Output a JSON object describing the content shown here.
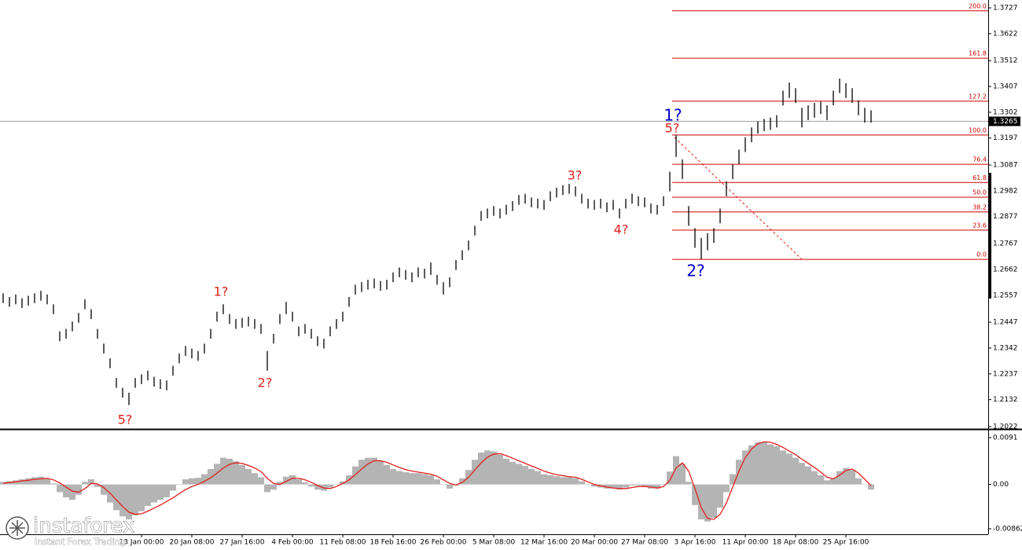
{
  "chart_data": [
    {
      "type": "hlbar",
      "color": "#000000",
      "ylim": [
        1.2022,
        1.3727
      ],
      "yticks": [
        1.3727,
        1.3622,
        1.3512,
        1.3407,
        1.3302,
        1.3197,
        1.3087,
        1.2982,
        1.2877,
        1.2767,
        1.2662,
        1.2557,
        1.2447,
        1.2342,
        1.2237,
        1.2132,
        1.2022
      ],
      "categories": [
        null,
        null,
        null,
        null,
        null,
        null,
        null,
        null,
        null,
        null,
        null,
        null,
        null,
        null,
        null,
        null,
        null,
        null,
        null,
        null,
        null,
        null,
        "13 Jan 00:00",
        null,
        null,
        null,
        null,
        null,
        null,
        null,
        "20 Jan 08:00",
        null,
        null,
        null,
        null,
        null,
        null,
        null,
        "27 Jan 16:00",
        null,
        null,
        null,
        null,
        null,
        null,
        null,
        "4 Feb 00:00",
        null,
        null,
        null,
        null,
        null,
        null,
        null,
        "11 Feb 08:00",
        null,
        null,
        null,
        null,
        null,
        null,
        null,
        "18 Feb 16:00",
        null,
        null,
        null,
        null,
        null,
        null,
        null,
        "26 Feb 00:00",
        null,
        null,
        null,
        null,
        null,
        null,
        null,
        "5 Mar 08:00",
        null,
        null,
        null,
        null,
        null,
        null,
        null,
        "12 Mar 16:00",
        null,
        null,
        null,
        null,
        null,
        null,
        null,
        "20 Mar 00:00",
        null,
        null,
        null,
        null,
        null,
        null,
        null,
        "27 Mar 08:00",
        null,
        null,
        null,
        null,
        null,
        null,
        null,
        "3 Apr 16:00",
        null,
        null,
        null,
        null,
        null,
        null,
        null,
        "11 Apr 00:00",
        null,
        null,
        null,
        null,
        null,
        null,
        null,
        "18 Apr 08:00",
        null,
        null,
        null,
        null,
        null,
        null,
        null,
        "25 Apr 16:00",
        null,
        null,
        null,
        null
      ],
      "high": [
        1.2565,
        1.255,
        1.256,
        1.2545,
        1.2555,
        1.2565,
        1.2575,
        1.256,
        1.252,
        1.241,
        1.242,
        1.245,
        1.2485,
        1.254,
        1.25,
        1.242,
        1.236,
        1.23,
        1.222,
        1.218,
        1.216,
        1.222,
        1.2235,
        1.225,
        1.2225,
        1.2215,
        1.221,
        1.227,
        1.232,
        1.235,
        1.234,
        1.233,
        1.236,
        1.242,
        1.249,
        1.252,
        1.248,
        1.246,
        1.2465,
        1.247,
        1.246,
        1.244,
        1.233,
        1.24,
        1.248,
        1.253,
        1.249,
        1.243,
        1.244,
        1.242,
        1.239,
        1.238,
        1.243,
        1.246,
        1.249,
        1.255,
        1.26,
        1.261,
        1.262,
        1.2625,
        1.2615,
        1.262,
        1.265,
        1.267,
        1.266,
        1.265,
        1.267,
        1.2665,
        1.269,
        1.264,
        1.261,
        1.263,
        1.27,
        1.274,
        1.278,
        1.284,
        1.29,
        1.291,
        1.292,
        1.291,
        1.2925,
        1.294,
        1.2965,
        1.297,
        1.2955,
        1.295,
        1.2945,
        1.298,
        1.2995,
        1.3005,
        1.301,
        1.3,
        1.297,
        1.295,
        1.2945,
        1.295,
        1.2935,
        1.2945,
        1.291,
        1.295,
        1.297,
        1.296,
        1.2955,
        1.293,
        1.2925,
        1.296,
        1.306,
        1.3209,
        1.311,
        1.292,
        1.283,
        1.279,
        1.281,
        1.283,
        1.291,
        1.302,
        1.309,
        1.315,
        1.32,
        1.324,
        1.3265,
        1.3275,
        1.328,
        1.329,
        1.339,
        1.3423,
        1.34,
        1.332,
        1.333,
        1.334,
        1.3345,
        1.333,
        1.339,
        1.3439,
        1.342,
        1.34,
        1.335,
        1.332,
        1.331
      ],
      "low": [
        1.2525,
        1.251,
        1.252,
        1.2505,
        1.2515,
        1.2525,
        1.2535,
        1.252,
        1.248,
        1.237,
        1.238,
        1.241,
        1.2445,
        1.25,
        1.246,
        1.238,
        1.232,
        1.226,
        1.218,
        1.214,
        1.211,
        1.218,
        1.2195,
        1.221,
        1.2185,
        1.2175,
        1.217,
        1.223,
        1.228,
        1.231,
        1.23,
        1.229,
        1.232,
        1.238,
        1.245,
        1.248,
        1.244,
        1.242,
        1.2425,
        1.243,
        1.242,
        1.24,
        1.225,
        1.236,
        1.244,
        1.248,
        1.245,
        1.239,
        1.24,
        1.238,
        1.235,
        1.234,
        1.239,
        1.242,
        1.245,
        1.251,
        1.256,
        1.257,
        1.258,
        1.2585,
        1.2575,
        1.258,
        1.261,
        1.263,
        1.262,
        1.261,
        1.263,
        1.2625,
        1.264,
        1.26,
        1.256,
        1.259,
        1.266,
        1.27,
        1.274,
        1.28,
        1.286,
        1.287,
        1.288,
        1.287,
        1.2885,
        1.29,
        1.2925,
        1.293,
        1.2915,
        1.291,
        1.2905,
        1.294,
        1.2955,
        1.2965,
        1.297,
        1.296,
        1.293,
        1.291,
        1.2905,
        1.291,
        1.2895,
        1.2905,
        1.287,
        1.291,
        1.293,
        1.292,
        1.2915,
        1.289,
        1.2885,
        1.292,
        1.298,
        1.312,
        1.303,
        1.284,
        1.275,
        1.2703,
        1.274,
        1.277,
        1.285,
        1.296,
        1.303,
        1.309,
        1.314,
        1.318,
        1.3215,
        1.3225,
        1.323,
        1.324,
        1.333,
        1.336,
        1.334,
        1.324,
        1.327,
        1.328,
        1.3295,
        1.327,
        1.333,
        1.338,
        1.336,
        1.334,
        1.329,
        1.326,
        1.326
      ],
      "last_price": 1.3265,
      "fib": {
        "color": "#d00000",
        "levels": [
          1.3715,
          1.3522,
          1.3347,
          1.3209,
          1.309,
          1.3016,
          1.2956,
          1.2896,
          1.2822,
          1.2703
        ],
        "labels": [
          "200.0",
          "161.8",
          "127.2",
          "100.0",
          "76.4",
          "61.8",
          "50.0",
          "38.2",
          "23.6",
          "0.0"
        ]
      },
      "annotations": [
        {
          "text": "5?",
          "color": "#e0211c"
        },
        {
          "text": "1?",
          "color": "#e0211c"
        },
        {
          "text": "2?",
          "color": "#e0211c"
        },
        {
          "text": "3?",
          "color": "#e0211c"
        },
        {
          "text": "4?",
          "color": "#e0211c"
        },
        {
          "text": "5?",
          "color": "#e0211c"
        },
        {
          "text": "1?",
          "color": "#0000cc"
        },
        {
          "text": "2?",
          "color": "#0000cc"
        }
      ],
      "brand": {
        "name": "instaforex",
        "tagline": "Instant Forex Trading"
      }
    },
    {
      "type": "macd",
      "ylim": [
        -0.00862,
        0.0091
      ],
      "yticks": [
        0.0091,
        {
          "value": 0,
          "label": "0.00"
        },
        -0.00862
      ],
      "histogram_color": "#b4b4b4",
      "signal_color": "#e0211c",
      "histogram": [
        0.0005,
        0.0006,
        0.0008,
        0.001,
        0.0012,
        0.0014,
        0.0015,
        0.0012,
        0.0002,
        -0.0015,
        -0.0025,
        -0.003,
        -0.002,
        0.0005,
        0.001,
        -0.0005,
        -0.002,
        -0.0035,
        -0.005,
        -0.0062,
        -0.0068,
        -0.006,
        -0.0052,
        -0.0042,
        -0.0035,
        -0.003,
        -0.0025,
        -0.0012,
        0,
        0.001,
        0.0012,
        0.0013,
        0.002,
        0.003,
        0.004,
        0.0052,
        0.005,
        0.0045,
        0.0038,
        0.003,
        0.0022,
        0.0014,
        -0.0015,
        -0.001,
        0.0005,
        0.0015,
        0.0018,
        0.001,
        0.0004,
        -0.0004,
        -0.001,
        -0.0012,
        -0.0006,
        0,
        0.0006,
        0.0018,
        0.0035,
        0.0048,
        0.0052,
        0.0052,
        0.0046,
        0.0038,
        0.003,
        0.0026,
        0.0024,
        0.0022,
        0.0022,
        0.002,
        0.0018,
        0.001,
        0,
        -0.0008,
        -0.0002,
        0.0012,
        0.0028,
        0.0048,
        0.0062,
        0.0066,
        0.0064,
        0.0058,
        0.005,
        0.0044,
        0.004,
        0.0036,
        0.003,
        0.0026,
        0.002,
        0.0018,
        0.0016,
        0.0014,
        0.0014,
        0.0012,
        0.0006,
        0,
        -0.0004,
        -0.0006,
        -0.0008,
        -0.0008,
        -0.001,
        -0.0006,
        -0.0002,
        -0.0002,
        -0.0004,
        -0.0008,
        -0.0008,
        0,
        0.0025,
        0.0055,
        0.004,
        0.0005,
        -0.004,
        -0.0068,
        -0.0072,
        -0.0065,
        -0.0045,
        -0.0015,
        0.002,
        0.0048,
        0.0066,
        0.0076,
        0.0082,
        0.0082,
        0.0078,
        0.0074,
        0.0066,
        0.006,
        0.0052,
        0.0042,
        0.0035,
        0.0026,
        0.0018,
        0.0008,
        0.0012,
        0.0026,
        0.0032,
        0.0028,
        0.0012,
        0,
        -0.001
      ],
      "signal": [
        0.0002,
        0.0004,
        0.0005,
        0.0007,
        0.0008,
        0.001,
        0.0011,
        0.0012,
        0.0009,
        0.0003,
        -0.0005,
        -0.0013,
        -0.0015,
        -0.0008,
        0.0002,
        0.0001,
        -0.0006,
        -0.0017,
        -0.003,
        -0.0043,
        -0.0054,
        -0.0058,
        -0.0057,
        -0.0052,
        -0.0046,
        -0.004,
        -0.0033,
        -0.0026,
        -0.0018,
        -0.001,
        -0.0004,
        0,
        0.0006,
        0.0013,
        0.0022,
        0.0032,
        0.0039,
        0.0042,
        0.0041,
        0.0037,
        0.0032,
        0.0025,
        0.0012,
        0.0002,
        0,
        0.0006,
        0.0012,
        0.0012,
        0.0009,
        0.0004,
        -0.0002,
        -0.0007,
        -0.0008,
        -0.0004,
        0.0002,
        0.0009,
        0.0019,
        0.003,
        0.004,
        0.0046,
        0.0046,
        0.0043,
        0.0038,
        0.0033,
        0.0029,
        0.0026,
        0.0024,
        0.0022,
        0.002,
        0.0016,
        0.0009,
        0.0002,
        -0.0001,
        0.0004,
        0.0014,
        0.0028,
        0.0042,
        0.0053,
        0.0059,
        0.006,
        0.0056,
        0.0051,
        0.0046,
        0.0041,
        0.0036,
        0.0031,
        0.0026,
        0.0022,
        0.0019,
        0.0017,
        0.0015,
        0.0014,
        0.001,
        0.0005,
        0,
        -0.0003,
        -0.0005,
        -0.0007,
        -0.0008,
        -0.0008,
        -0.0006,
        -0.0004,
        -0.0004,
        -0.0005,
        -0.0007,
        -0.0004,
        0.0008,
        0.0032,
        0.0042,
        0.0026,
        -0.0008,
        -0.0045,
        -0.0066,
        -0.0068,
        -0.0058,
        -0.0036,
        -0.0005,
        0.0026,
        0.0052,
        0.0069,
        0.0079,
        0.0083,
        0.0082,
        0.0078,
        0.0072,
        0.0065,
        0.0058,
        0.0049,
        0.0041,
        0.0033,
        0.0024,
        0.0014,
        0.0011,
        0.0018,
        0.0027,
        0.003,
        0.0022,
        0.001,
        -0.0002
      ]
    }
  ]
}
